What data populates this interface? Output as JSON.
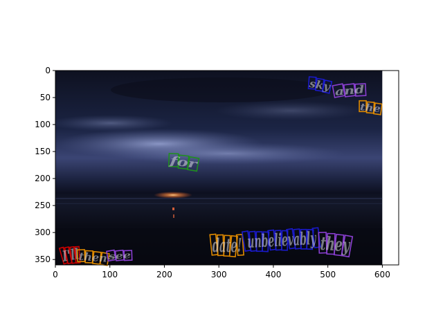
{
  "plot": {
    "x_ticks": [
      "0",
      "100",
      "200",
      "300",
      "400",
      "500",
      "600"
    ],
    "y_ticks": [
      "0",
      "50",
      "100",
      "150",
      "200",
      "250",
      "300",
      "350"
    ],
    "x_tick_values": [
      0,
      100,
      200,
      300,
      400,
      500,
      600
    ],
    "y_tick_values": [
      0,
      50,
      100,
      150,
      200,
      250,
      300,
      350
    ],
    "x_range": [
      0,
      630
    ],
    "y_range": [
      360,
      0
    ],
    "image_extent": {
      "width": 600,
      "height": 360
    },
    "colors": {
      "sky_dark": "#0c0e1a",
      "cloud_blue": "#7b86b8",
      "sun": "#ffb36b",
      "red": "#cc0000",
      "orange": "#e08a00",
      "purple": "#8a3fd1",
      "green": "#1f8f1f",
      "blue": "#1a1acc"
    }
  },
  "text_boxes": [
    {
      "word": "for",
      "color": "green",
      "cx": 235,
      "cy": 170,
      "w": 55,
      "h": 24,
      "angle": 8
    },
    {
      "word": "the",
      "color": "orange",
      "cx": 578,
      "cy": 69,
      "w": 42,
      "h": 20,
      "angle": 6
    },
    {
      "word": "and",
      "color": "purple",
      "cx": 540,
      "cy": 37,
      "w": 60,
      "h": 22,
      "angle": -5
    },
    {
      "word": "sky",
      "color": "blue",
      "cx": 485,
      "cy": 27,
      "w": 42,
      "h": 22,
      "angle": 10
    },
    {
      "word": "date!",
      "color": "orange",
      "cx": 315,
      "cy": 324,
      "w": 60,
      "h": 38,
      "angle": 0
    },
    {
      "word": "unbelievably",
      "color": "blue",
      "cx": 415,
      "cy": 314,
      "w": 140,
      "h": 36,
      "angle": -3
    },
    {
      "word": "they",
      "color": "purple",
      "cx": 513,
      "cy": 322,
      "w": 60,
      "h": 38,
      "angle": 4
    },
    {
      "word": "I'll",
      "color": "red",
      "cx": 28,
      "cy": 342,
      "w": 34,
      "h": 30,
      "angle": -10
    },
    {
      "word": "then",
      "color": "orange",
      "cx": 69,
      "cy": 346,
      "w": 58,
      "h": 22,
      "angle": 4
    },
    {
      "word": "see",
      "color": "purple",
      "cx": 118,
      "cy": 343,
      "w": 46,
      "h": 18,
      "angle": -4
    }
  ]
}
